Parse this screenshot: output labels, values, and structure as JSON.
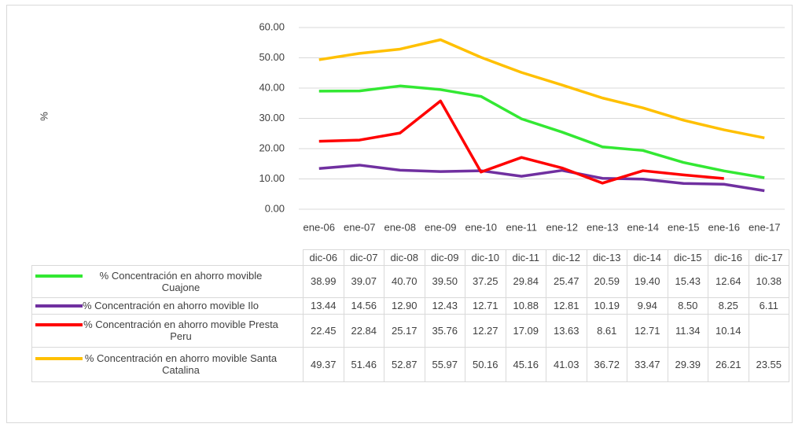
{
  "chart_data": {
    "type": "line",
    "y_label": "%",
    "categories": [
      "ene-06",
      "ene-07",
      "ene-08",
      "ene-09",
      "ene-10",
      "ene-11",
      "ene-12",
      "ene-13",
      "ene-14",
      "ene-15",
      "ene-16",
      "ene-17"
    ],
    "table_header": [
      "dic-06",
      "dic-07",
      "dic-08",
      "dic-09",
      "dic-10",
      "dic-11",
      "dic-12",
      "dic-13",
      "dic-14",
      "dic-15",
      "dic-16",
      "dic-17"
    ],
    "ylim": [
      0,
      60
    ],
    "yticks": [
      {
        "value": 0,
        "label": "0.00"
      },
      {
        "value": 10,
        "label": "10.00"
      },
      {
        "value": 20,
        "label": "20.00"
      },
      {
        "value": 30,
        "label": "30.00"
      },
      {
        "value": 40,
        "label": "40.00"
      },
      {
        "value": 50,
        "label": "50.00"
      },
      {
        "value": 60,
        "label": "60.00"
      }
    ],
    "grid": true,
    "series": [
      {
        "name": "% Concentración en ahorro movible Cuajone",
        "color": "#33e833",
        "values": [
          38.99,
          39.07,
          40.7,
          39.5,
          37.25,
          29.84,
          25.47,
          20.59,
          19.4,
          15.43,
          12.64,
          10.38
        ],
        "value_labels": [
          "38.99",
          "39.07",
          "40.70",
          "39.50",
          "37.25",
          "29.84",
          "25.47",
          "20.59",
          "19.40",
          "15.43",
          "12.64",
          "10.38"
        ]
      },
      {
        "name": "% Concentración en ahorro movible Ilo",
        "color": "#7030a0",
        "values": [
          13.44,
          14.56,
          12.9,
          12.43,
          12.71,
          10.88,
          12.81,
          10.19,
          9.94,
          8.5,
          8.25,
          6.11
        ],
        "value_labels": [
          "13.44",
          "14.56",
          "12.90",
          "12.43",
          "12.71",
          "10.88",
          "12.81",
          "10.19",
          "9.94",
          "8.50",
          "8.25",
          "6.11"
        ]
      },
      {
        "name": "% Concentración en ahorro movible Presta Peru",
        "color": "#ff0000",
        "values": [
          22.45,
          22.84,
          25.17,
          35.76,
          12.27,
          17.09,
          13.63,
          8.61,
          12.71,
          11.34,
          10.14,
          null
        ],
        "value_labels": [
          "22.45",
          "22.84",
          "25.17",
          "35.76",
          "12.27",
          "17.09",
          "13.63",
          "8.61",
          "12.71",
          "11.34",
          "10.14",
          null
        ]
      },
      {
        "name": "% Concentración en ahorro movible Santa Catalina",
        "color": "#ffc000",
        "values": [
          49.37,
          51.46,
          52.87,
          55.97,
          50.16,
          45.16,
          41.03,
          36.72,
          33.47,
          29.39,
          26.21,
          23.55
        ],
        "value_labels": [
          "49.37",
          "51.46",
          "52.87",
          "55.97",
          "50.16",
          "45.16",
          "41.03",
          "36.72",
          "33.47",
          "29.39",
          "26.21",
          "23.55"
        ]
      }
    ]
  }
}
